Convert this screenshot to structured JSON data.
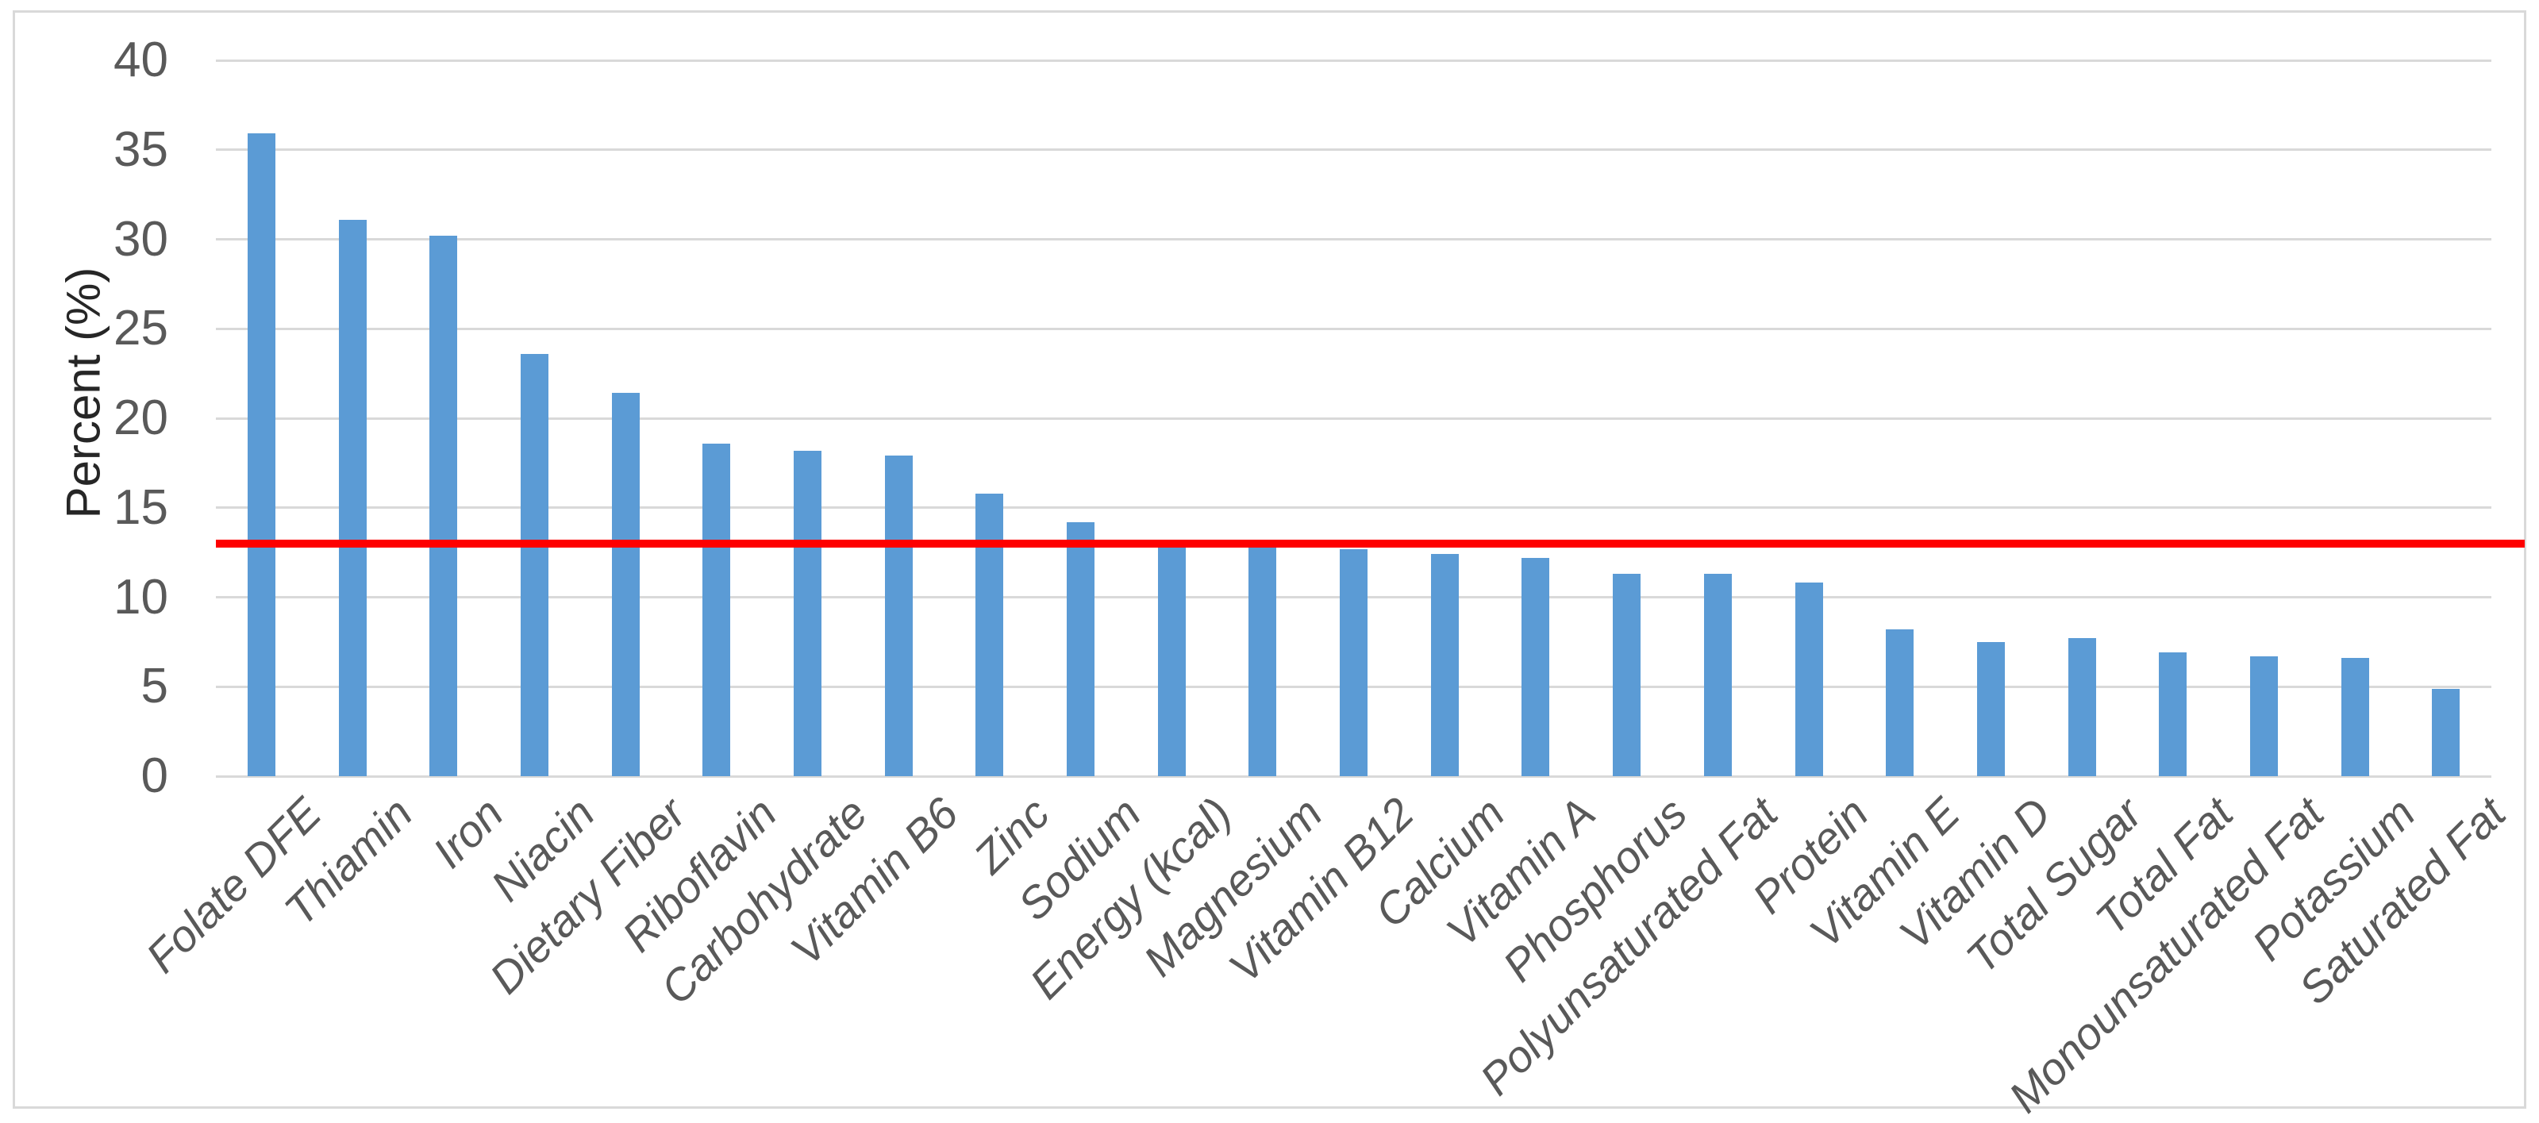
{
  "chart_data": {
    "type": "bar",
    "title": "",
    "xlabel": "",
    "ylabel": "Percent (%)",
    "ylim": [
      0,
      40
    ],
    "yticks": [
      0,
      5,
      10,
      15,
      20,
      25,
      30,
      35,
      40
    ],
    "grid": true,
    "legend": "none",
    "categories": [
      "Folate DFE",
      "Thiamin",
      "Iron",
      "Niacin",
      "Dietary Fiber",
      "Riboflavin",
      "Carbohydrate",
      "Vitamin B6",
      "Zinc",
      "Sodium",
      "Energy (kcal)",
      "Magnesium",
      "Vitamin B12",
      "Calcium",
      "Vitamin A",
      "Phosphorus",
      "Polyunsaturated Fat",
      "Protein",
      "Vitamin E",
      "Vitamin D",
      "Total Sugar",
      "Total Fat",
      "Monounsaturated Fat",
      "Potassium",
      "Saturated Fat"
    ],
    "values": [
      35.9,
      31.1,
      30.2,
      23.6,
      21.4,
      18.6,
      18.2,
      17.9,
      15.8,
      14.2,
      12.9,
      12.9,
      12.7,
      12.4,
      12.2,
      11.3,
      11.3,
      10.8,
      8.2,
      7.5,
      7.7,
      6.9,
      6.7,
      6.6,
      4.9
    ],
    "reference_line": {
      "value": 13,
      "color": "#fe0000"
    },
    "colors": {
      "bar": "#5b9bd5",
      "gridline": "#d9d9d9",
      "tick_text": "#595959",
      "axis_title_text": "#262626",
      "frame_border": "#d9d9d9",
      "background": "#ffffff"
    }
  }
}
